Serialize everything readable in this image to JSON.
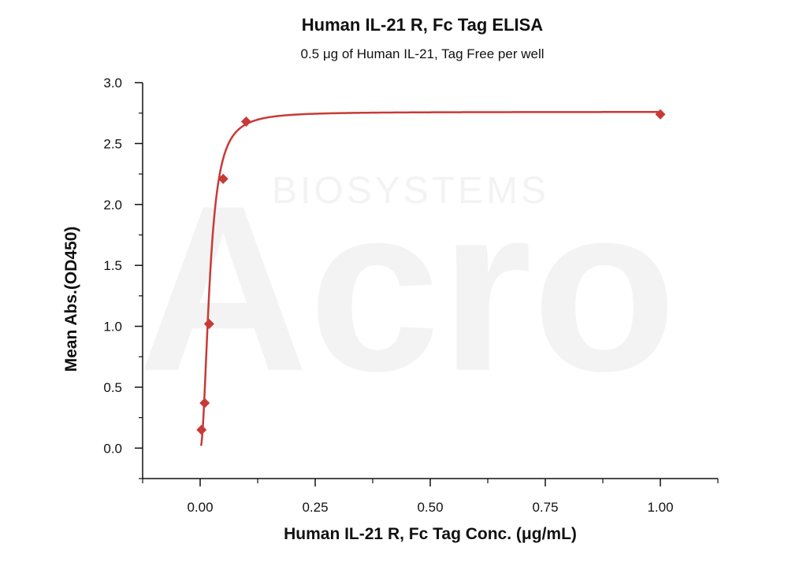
{
  "chart_data": {
    "type": "scatter",
    "title": "Human IL-21 R, Fc Tag ELISA",
    "subtitle": "0.5 μg of Human IL-21, Tag Free per well",
    "xlabel": "Human IL-21 R, Fc Tag Conc. (μg/mL)",
    "ylabel": "Mean Abs.(OD450)",
    "xlim": [
      -0.125,
      1.125
    ],
    "ylim": [
      -0.25,
      3.0
    ],
    "x_ticks": [
      0.0,
      0.25,
      0.5,
      0.75,
      1.0
    ],
    "x_tick_labels": [
      "0.00",
      "0.25",
      "0.50",
      "0.75",
      "1.00"
    ],
    "y_ticks": [
      0.0,
      0.5,
      1.0,
      1.5,
      2.0,
      2.5,
      3.0
    ],
    "y_tick_labels": [
      "0.0",
      "0.5",
      "1.0",
      "1.5",
      "2.0",
      "2.5",
      "3.0"
    ],
    "grid": false,
    "series": [
      {
        "marker": "diamond",
        "color": "#c83a37",
        "x": [
          0.003,
          0.0098,
          0.0195,
          0.05,
          0.1,
          1.0
        ],
        "y": [
          0.15,
          0.37,
          1.02,
          2.21,
          2.68,
          2.74
        ]
      }
    ],
    "fit_curve": {
      "type": "4PL sigmoidal fit",
      "color": "#c83a37",
      "bottom": 0.0,
      "top": 2.76,
      "ec50": 0.021,
      "hill": 2.1
    },
    "watermark": {
      "logo_text": "Acro",
      "sub_text": "BIOSYSTEMS"
    }
  }
}
